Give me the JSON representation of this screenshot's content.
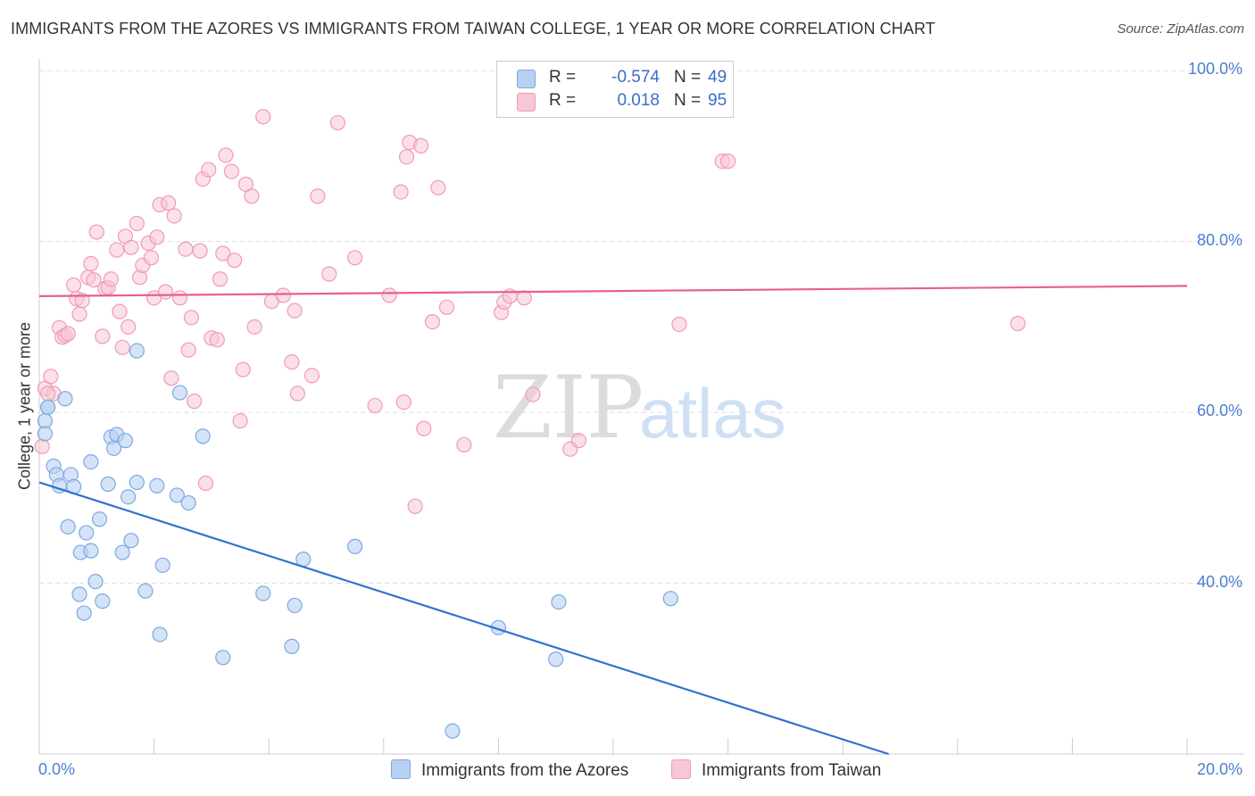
{
  "title": "IMMIGRANTS FROM THE AZORES VS IMMIGRANTS FROM TAIWAN COLLEGE, 1 YEAR OR MORE CORRELATION CHART",
  "source": "Source: ZipAtlas.com",
  "watermark": {
    "zip": "ZIP",
    "atlas": "atlas"
  },
  "legend": {
    "azores": {
      "r_label": "R =",
      "r_value": "-0.574",
      "n_label": "N =",
      "n_value": "49"
    },
    "taiwan": {
      "r_label": "R =",
      "r_value": "0.018",
      "n_label": "N =",
      "n_value": "95"
    }
  },
  "chart_data": {
    "type": "scatter",
    "title": "IMMIGRANTS FROM THE AZORES VS IMMIGRANTS FROM TAIWAN COLLEGE, 1 YEAR OR MORE CORRELATION CHART",
    "xlabel": "",
    "ylabel": "College, 1 year or more",
    "xlim": [
      0,
      20
    ],
    "ylim": [
      20,
      102
    ],
    "x_tick_labels": [
      "0.0%",
      "20.0%"
    ],
    "y_ticks": [
      40,
      60,
      80,
      100
    ],
    "y_tick_labels": [
      "40.0%",
      "60.0%",
      "80.0%",
      "100.0%"
    ],
    "grid": "horizontal dashed",
    "legend_position": "top-center",
    "colors": {
      "azores_fill": "#b8d0f2",
      "azores_stroke": "#7fa8e0",
      "azores_line": "#2f73d2",
      "taiwan_fill": "#f8c6d4",
      "taiwan_stroke": "#ef9bb5",
      "taiwan_line": "#e8608a",
      "tick_label": "#4a7fd0"
    },
    "series": [
      {
        "name": "Immigrants from the Azores",
        "r": -0.574,
        "n": 49,
        "trend": {
          "x": [
            0,
            14.8
          ],
          "y": [
            51.8,
            20
          ]
        },
        "points": [
          [
            0.1,
            59
          ],
          [
            0.1,
            57.5
          ],
          [
            0.15,
            60.6
          ],
          [
            0.25,
            53.7
          ],
          [
            0.3,
            52.7
          ],
          [
            0.35,
            51.4
          ],
          [
            0.45,
            61.6
          ],
          [
            0.5,
            46.6
          ],
          [
            0.55,
            52.7
          ],
          [
            0.6,
            51.3
          ],
          [
            0.7,
            38.7
          ],
          [
            0.72,
            43.6
          ],
          [
            0.78,
            36.5
          ],
          [
            0.82,
            45.9
          ],
          [
            0.9,
            43.8
          ],
          [
            0.9,
            54.2
          ],
          [
            0.98,
            40.2
          ],
          [
            1.05,
            47.5
          ],
          [
            1.1,
            37.9
          ],
          [
            1.2,
            51.6
          ],
          [
            1.25,
            57.1
          ],
          [
            1.3,
            55.8
          ],
          [
            1.35,
            57.4
          ],
          [
            1.45,
            43.6
          ],
          [
            1.5,
            56.7
          ],
          [
            1.55,
            50.1
          ],
          [
            1.6,
            45
          ],
          [
            1.7,
            51.8
          ],
          [
            1.7,
            67.2
          ],
          [
            1.85,
            39.1
          ],
          [
            2.05,
            51.4
          ],
          [
            2.1,
            34
          ],
          [
            2.15,
            42.1
          ],
          [
            2.4,
            50.3
          ],
          [
            2.45,
            62.3
          ],
          [
            2.6,
            49.4
          ],
          [
            2.85,
            57.2
          ],
          [
            3.2,
            31.3
          ],
          [
            3.9,
            38.8
          ],
          [
            4.4,
            32.6
          ],
          [
            4.45,
            37.4
          ],
          [
            4.6,
            42.8
          ],
          [
            5.5,
            44.3
          ],
          [
            7.2,
            22.7
          ],
          [
            8.0,
            34.8
          ],
          [
            9.0,
            31.1
          ],
          [
            9.05,
            37.8
          ],
          [
            11.0,
            38.2
          ],
          [
            0.15,
            60.6
          ]
        ]
      },
      {
        "name": "Immigrants from Taiwan",
        "r": 0.018,
        "n": 95,
        "trend": {
          "x": [
            0,
            20
          ],
          "y": [
            73.6,
            74.8
          ]
        },
        "points": [
          [
            0.05,
            56
          ],
          [
            0.1,
            62.8
          ],
          [
            0.2,
            64.2
          ],
          [
            0.25,
            62.2
          ],
          [
            0.35,
            69.9
          ],
          [
            0.4,
            68.8
          ],
          [
            0.45,
            69
          ],
          [
            0.5,
            69.2
          ],
          [
            0.6,
            74.9
          ],
          [
            0.65,
            73.3
          ],
          [
            0.7,
            71.5
          ],
          [
            0.75,
            73.1
          ],
          [
            0.85,
            75.8
          ],
          [
            0.9,
            77.4
          ],
          [
            0.95,
            75.5
          ],
          [
            1.0,
            81.1
          ],
          [
            1.1,
            68.9
          ],
          [
            1.15,
            74.5
          ],
          [
            1.2,
            74.6
          ],
          [
            1.25,
            75.6
          ],
          [
            1.35,
            79
          ],
          [
            1.4,
            71.8
          ],
          [
            1.45,
            67.6
          ],
          [
            1.5,
            80.6
          ],
          [
            1.55,
            70
          ],
          [
            1.6,
            79.3
          ],
          [
            1.7,
            82.1
          ],
          [
            1.75,
            75.8
          ],
          [
            1.8,
            77.2
          ],
          [
            1.9,
            79.8
          ],
          [
            1.95,
            78.1
          ],
          [
            2.0,
            73.4
          ],
          [
            2.05,
            80.5
          ],
          [
            2.1,
            84.3
          ],
          [
            2.2,
            74.1
          ],
          [
            2.25,
            84.5
          ],
          [
            2.3,
            64
          ],
          [
            2.35,
            83
          ],
          [
            2.45,
            73.4
          ],
          [
            2.55,
            79.1
          ],
          [
            2.6,
            67.3
          ],
          [
            2.65,
            71.1
          ],
          [
            2.7,
            61.3
          ],
          [
            2.8,
            78.9
          ],
          [
            2.85,
            87.3
          ],
          [
            2.9,
            51.7
          ],
          [
            2.95,
            88.4
          ],
          [
            3.0,
            68.7
          ],
          [
            3.1,
            68.5
          ],
          [
            3.15,
            75.6
          ],
          [
            3.2,
            78.6
          ],
          [
            3.25,
            90.1
          ],
          [
            3.35,
            88.2
          ],
          [
            3.4,
            77.8
          ],
          [
            3.5,
            59
          ],
          [
            3.55,
            65
          ],
          [
            3.6,
            86.7
          ],
          [
            3.7,
            85.3
          ],
          [
            3.75,
            70
          ],
          [
            3.9,
            94.6
          ],
          [
            4.05,
            73
          ],
          [
            4.25,
            73.7
          ],
          [
            4.4,
            65.9
          ],
          [
            4.45,
            71.9
          ],
          [
            4.5,
            62.2
          ],
          [
            4.75,
            64.3
          ],
          [
            4.85,
            85.3
          ],
          [
            5.05,
            76.2
          ],
          [
            5.2,
            93.9
          ],
          [
            5.5,
            78.1
          ],
          [
            5.85,
            60.8
          ],
          [
            6.1,
            73.7
          ],
          [
            6.3,
            85.8
          ],
          [
            6.35,
            61.2
          ],
          [
            6.4,
            89.9
          ],
          [
            6.45,
            91.6
          ],
          [
            6.55,
            49
          ],
          [
            6.65,
            91.2
          ],
          [
            6.7,
            58.1
          ],
          [
            6.85,
            70.6
          ],
          [
            6.95,
            86.3
          ],
          [
            7.1,
            72.3
          ],
          [
            7.4,
            56.2
          ],
          [
            8.05,
            71.7
          ],
          [
            8.1,
            72.9
          ],
          [
            8.2,
            73.6
          ],
          [
            8.45,
            73.4
          ],
          [
            8.6,
            62.1
          ],
          [
            9.25,
            55.7
          ],
          [
            9.4,
            56.7
          ],
          [
            11.15,
            70.3
          ],
          [
            11.9,
            89.4
          ],
          [
            12.0,
            89.4
          ],
          [
            17.05,
            70.4
          ],
          [
            0.15,
            62.2
          ]
        ]
      }
    ]
  },
  "bottom_legend": [
    "Immigrants from the Azores",
    "Immigrants from Taiwan"
  ]
}
